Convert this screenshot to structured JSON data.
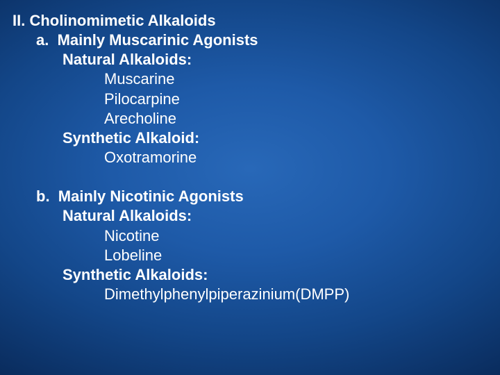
{
  "title_prefix": "II.",
  "title_text": "Cholinomimetic Alkaloids",
  "section_a": {
    "marker": "a.",
    "heading": "Mainly Muscarinic Agonists",
    "group1_label": "Natural Alkaloids:",
    "group1_items": [
      "Muscarine",
      "Pilocarpine",
      "Arecholine"
    ],
    "group2_label": "Synthetic Alkaloid:",
    "group2_items": [
      "Oxotramorine"
    ]
  },
  "section_b": {
    "marker": "b.",
    "heading": "Mainly Nicotinic Agonists",
    "group1_label": "Natural Alkaloids:",
    "group1_items": [
      "Nicotine",
      "Lobeline"
    ],
    "group2_label": "Synthetic Alkaloids:",
    "group2_items": [
      "Dimethylphenylpiperazinium(DMPP)"
    ]
  },
  "style": {
    "background_center": "#2868b8",
    "background_edge": "#041838",
    "text_color": "#ffffff",
    "font_family": "Verdana",
    "base_fontsize_pt": 17,
    "slide_width": 720,
    "slide_height": 540
  }
}
